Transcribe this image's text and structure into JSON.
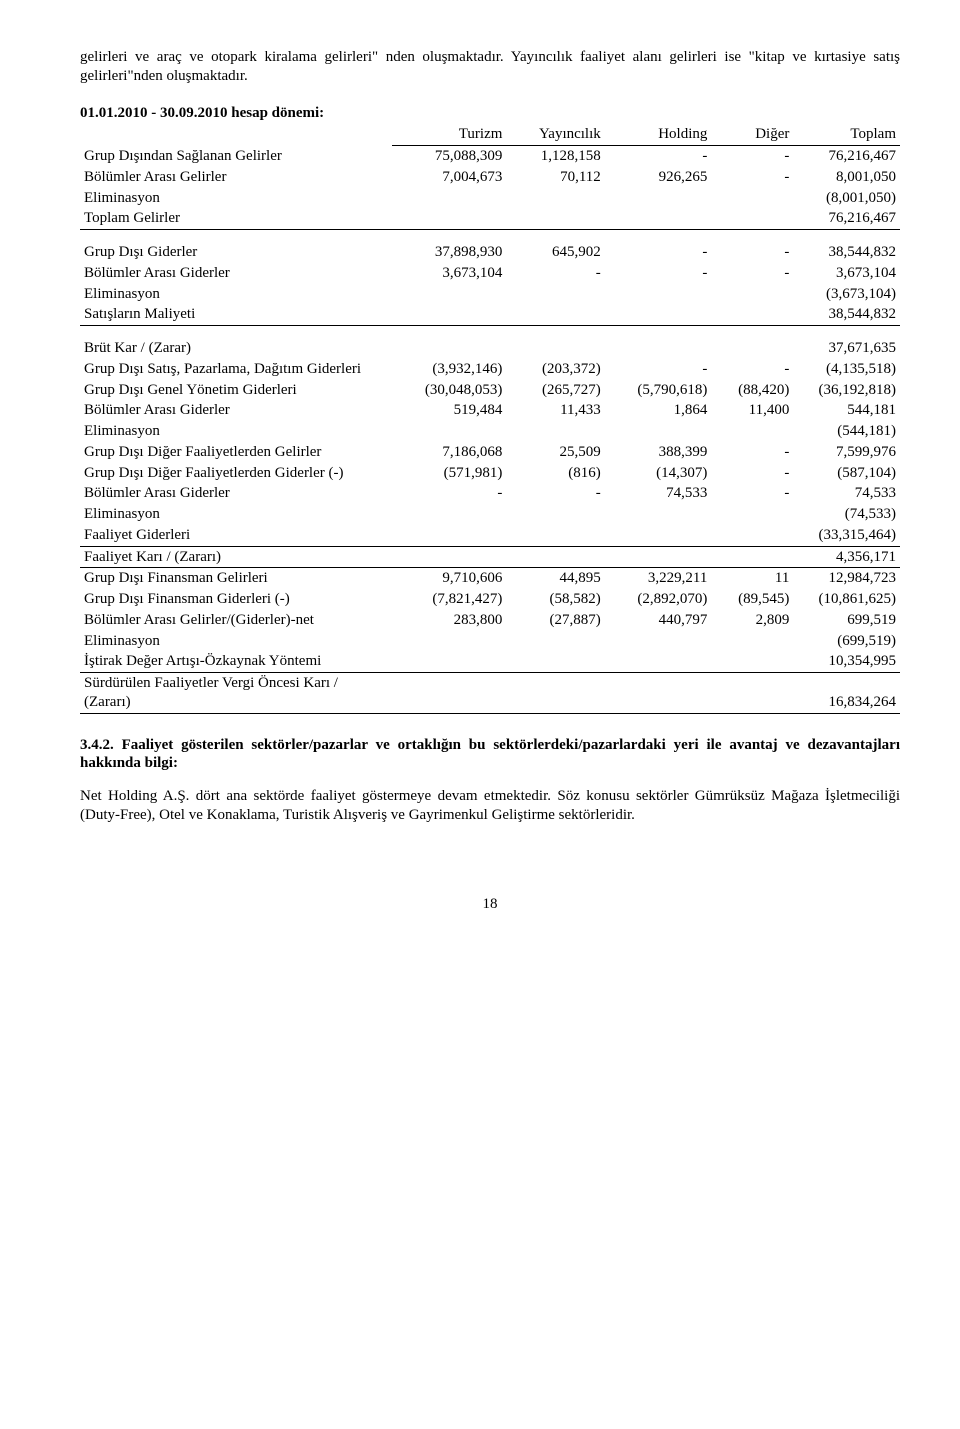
{
  "intro": {
    "p1": "gelirleri ve araç ve otopark kiralama gelirleri\" nden oluşmaktadır. Yayıncılık faaliyet alanı gelirleri ise \"kitap ve kırtasiye satış gelirleri\"nden oluşmaktadır."
  },
  "period": {
    "label": "01.01.2010 - 30.09.2010 hesap dönemi:"
  },
  "table": {
    "columns": [
      "Turizm",
      "Yayıncılık",
      "Holding",
      "Diğer",
      "Toplam"
    ],
    "rows": [
      {
        "label": "Grup Dışından Sağlanan Gelirler",
        "cells": [
          "75,088,309",
          "1,128,158",
          "-",
          "-",
          "76,216,467"
        ]
      },
      {
        "label": "Bölümler Arası Gelirler",
        "cells": [
          "7,004,673",
          "70,112",
          "926,265",
          "-",
          "8,001,050"
        ]
      },
      {
        "label": "Eliminasyon",
        "cells": [
          "",
          "",
          "",
          "",
          "(8,001,050)"
        ]
      },
      {
        "label": "Toplam Gelirler",
        "cells": [
          "",
          "",
          "",
          "",
          "76,216,467"
        ],
        "section_end": true
      },
      {
        "spacer": true
      },
      {
        "label": "Grup Dışı Giderler",
        "cells": [
          "37,898,930",
          "645,902",
          "-",
          "-",
          "38,544,832"
        ]
      },
      {
        "label": "Bölümler Arası Giderler",
        "cells": [
          "3,673,104",
          "-",
          "-",
          "-",
          "3,673,104"
        ]
      },
      {
        "label": "Eliminasyon",
        "cells": [
          "",
          "",
          "",
          "",
          "(3,673,104)"
        ]
      },
      {
        "label": "Satışların Maliyeti",
        "cells": [
          "",
          "",
          "",
          "",
          "38,544,832"
        ],
        "section_end": true
      },
      {
        "spacer": true
      },
      {
        "label": "Brüt Kar / (Zarar)",
        "cells": [
          "",
          "",
          "",
          "",
          "37,671,635"
        ]
      },
      {
        "label": "Grup Dışı Satış, Pazarlama, Dağıtım Giderleri",
        "cells": [
          "(3,932,146)",
          "(203,372)",
          "-",
          "-",
          "(4,135,518)"
        ]
      },
      {
        "label": "Grup Dışı Genel Yönetim Giderleri",
        "cells": [
          "(30,048,053)",
          "(265,727)",
          "(5,790,618)",
          "(88,420)",
          "(36,192,818)"
        ]
      },
      {
        "label": "Bölümler Arası Giderler",
        "cells": [
          "519,484",
          "11,433",
          "1,864",
          "11,400",
          "544,181"
        ]
      },
      {
        "label": "Eliminasyon",
        "cells": [
          "",
          "",
          "",
          "",
          "(544,181)"
        ]
      },
      {
        "label": "Grup Dışı Diğer Faaliyetlerden Gelirler",
        "cells": [
          "7,186,068",
          "25,509",
          "388,399",
          "-",
          "7,599,976"
        ]
      },
      {
        "label": "Grup Dışı Diğer Faaliyetlerden Giderler (-)",
        "cells": [
          "(571,981)",
          "(816)",
          "(14,307)",
          "-",
          "(587,104)"
        ]
      },
      {
        "label": "Bölümler Arası Giderler",
        "cells": [
          "-",
          "-",
          "74,533",
          "-",
          "74,533"
        ]
      },
      {
        "label": "Eliminasyon",
        "cells": [
          "",
          "",
          "",
          "",
          "(74,533)"
        ]
      },
      {
        "label": "Faaliyet Giderleri",
        "cells": [
          "",
          "",
          "",
          "",
          "(33,315,464)"
        ],
        "section_end": true
      },
      {
        "label": "Faaliyet Karı / (Zararı)",
        "cells": [
          "",
          "",
          "",
          "",
          "4,356,171"
        ],
        "section_end": true
      },
      {
        "label": "Grup Dışı Finansman Gelirleri",
        "cells": [
          "9,710,606",
          "44,895",
          "3,229,211",
          "11",
          "12,984,723"
        ]
      },
      {
        "label": "Grup Dışı Finansman Giderleri (-)",
        "cells": [
          "(7,821,427)",
          "(58,582)",
          "(2,892,070)",
          "(89,545)",
          "(10,861,625)"
        ]
      },
      {
        "label": "Bölümler Arası Gelirler/(Giderler)-net",
        "cells": [
          "283,800",
          "(27,887)",
          "440,797",
          "2,809",
          "699,519"
        ]
      },
      {
        "label": "Eliminasyon",
        "cells": [
          "",
          "",
          "",
          "",
          "(699,519)"
        ]
      },
      {
        "label": "İştirak Değer Artışı-Özkaynak Yöntemi",
        "cells": [
          "",
          "",
          "",
          "",
          "10,354,995"
        ],
        "section_end": true
      },
      {
        "label": "Sürdürülen Faaliyetler Vergi Öncesi Karı / (Zararı)",
        "cells": [
          "",
          "",
          "",
          "",
          "16,834,264"
        ],
        "section_end": true
      }
    ]
  },
  "section342": {
    "title": "3.4.2. Faaliyet gösterilen sektörler/pazarlar ve ortaklığın bu sektörlerdeki/pazarlardaki yeri ile avantaj ve dezavantajları hakkında bilgi:",
    "body": "Net Holding A.Ş. dört ana sektörde faaliyet göstermeye devam etmektedir. Söz konusu sektörler Gümrüksüz Mağaza İşletmeciliği (Duty-Free), Otel ve Konaklama, Turistik Alışveriş ve Gayrimenkul Geliştirme sektörleridir."
  },
  "pageNumber": "18"
}
